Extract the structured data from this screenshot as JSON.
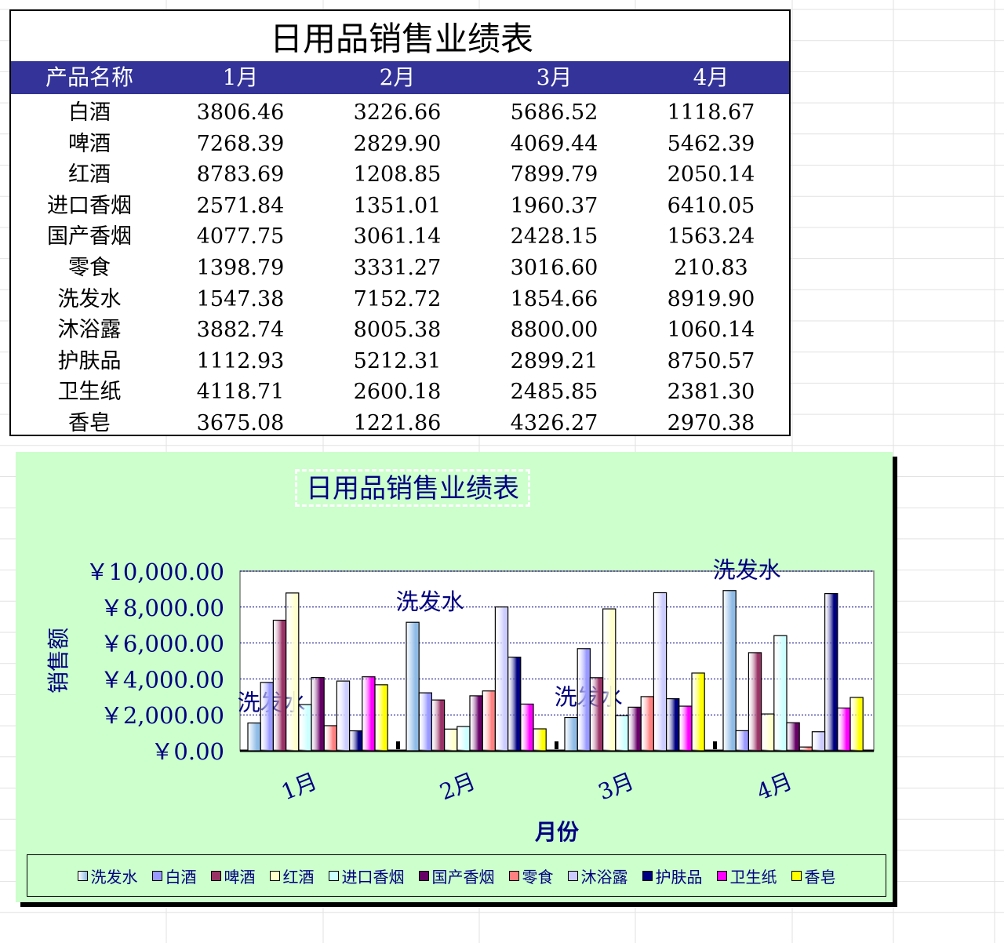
{
  "table": {
    "title": "日用品销售业绩表",
    "headers": [
      "产品名称",
      "1月",
      "2月",
      "3月",
      "4月"
    ],
    "rows": [
      [
        "白酒",
        "3806.46",
        "3226.66",
        "5686.52",
        "1118.67"
      ],
      [
        "啤酒",
        "7268.39",
        "2829.90",
        "4069.44",
        "5462.39"
      ],
      [
        "红酒",
        "8783.69",
        "1208.85",
        "7899.79",
        "2050.14"
      ],
      [
        "进口香烟",
        "2571.84",
        "1351.01",
        "1960.37",
        "6410.05"
      ],
      [
        "国产香烟",
        "4077.75",
        "3061.14",
        "2428.15",
        "1563.24"
      ],
      [
        "零食",
        "1398.79",
        "3331.27",
        "3016.60",
        "210.83"
      ],
      [
        "洗发水",
        "1547.38",
        "7152.72",
        "1854.66",
        "8919.90"
      ],
      [
        "沐浴露",
        "3882.74",
        "8005.38",
        "8800.00",
        "1060.14"
      ],
      [
        "护肤品",
        "1112.93",
        "5212.31",
        "2899.21",
        "8750.57"
      ],
      [
        "卫生纸",
        "4118.71",
        "2600.18",
        "2485.85",
        "2381.30"
      ],
      [
        "香皂",
        "3675.08",
        "1221.86",
        "4326.27",
        "2970.38"
      ]
    ]
  },
  "chart_data": {
    "type": "bar",
    "title": "日用品销售业绩表",
    "xlabel": "月份",
    "ylabel": "销售额",
    "categories": [
      "1月",
      "2月",
      "3月",
      "4月"
    ],
    "ylim": [
      0,
      10000
    ],
    "yticks": [
      0,
      2000,
      4000,
      6000,
      8000,
      10000
    ],
    "ytick_labels": [
      "￥0.00",
      "￥2,000.00",
      "￥4,000.00",
      "￥6,000.00",
      "￥8,000.00",
      "￥10,000.00"
    ],
    "grid": true,
    "legend_position": "bottom",
    "data_label_series": "洗发水",
    "series": [
      {
        "name": "洗发水",
        "values": [
          1547.38,
          7152.72,
          1854.66,
          8919.9
        ],
        "color": "#8fbce6"
      },
      {
        "name": "白酒",
        "values": [
          3806.46,
          3226.66,
          5686.52,
          1118.67
        ],
        "color": "#9999ff"
      },
      {
        "name": "啤酒",
        "values": [
          7268.39,
          2829.9,
          4069.44,
          5462.39
        ],
        "color": "#993366"
      },
      {
        "name": "红酒",
        "values": [
          8783.69,
          1208.85,
          7899.79,
          2050.14
        ],
        "color": "#ffffcc"
      },
      {
        "name": "进口香烟",
        "values": [
          2571.84,
          1351.01,
          1960.37,
          6410.05
        ],
        "color": "#ccffff"
      },
      {
        "name": "国产香烟",
        "values": [
          4077.75,
          3061.14,
          2428.15,
          1563.24
        ],
        "color": "#660066"
      },
      {
        "name": "零食",
        "values": [
          1398.79,
          3331.27,
          3016.6,
          210.83
        ],
        "color": "#ff8080"
      },
      {
        "name": "沐浴露",
        "values": [
          3882.74,
          8005.38,
          8800.0,
          1060.14
        ],
        "color": "#ccccff"
      },
      {
        "name": "护肤品",
        "values": [
          1112.93,
          5212.31,
          2899.21,
          8750.57
        ],
        "color": "#000080"
      },
      {
        "name": "卫生纸",
        "values": [
          4118.71,
          2600.18,
          2485.85,
          2381.3
        ],
        "color": "#ff00ff"
      },
      {
        "name": "香皂",
        "values": [
          3675.08,
          1221.86,
          4326.27,
          2970.38
        ],
        "color": "#ffff00"
      }
    ]
  }
}
